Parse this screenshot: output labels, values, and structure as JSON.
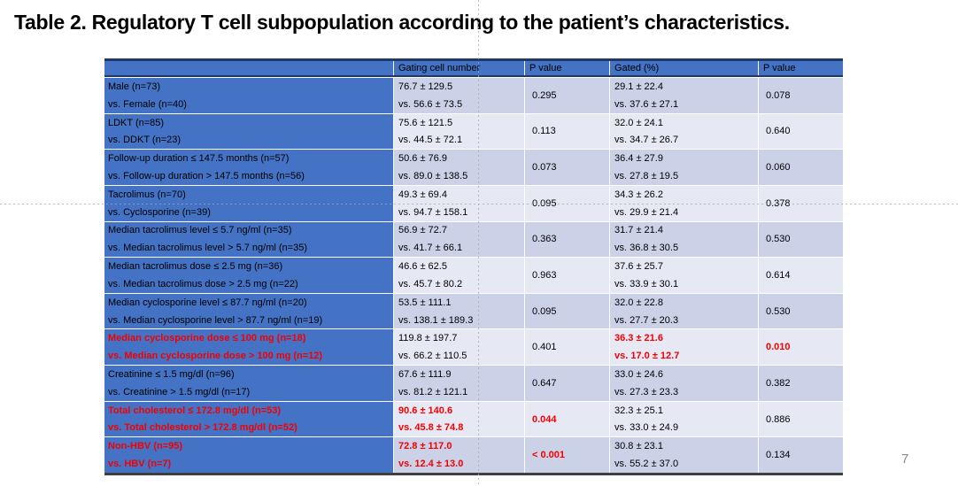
{
  "slide": {
    "title": "Table 2. Regulatory T cell subpopulation according to the patient’s characteristics.",
    "page_number": "7"
  },
  "colors": {
    "header_bg": "#4472C4",
    "label_bg": "#4472C4",
    "band_dark": "#CBD2E8",
    "band_light": "#E6E9F4",
    "highlight_red": "#F40000",
    "border_dark": "#1F3864",
    "border_bottom": "#404040",
    "guide_gray": "#A8A8A8",
    "page_number_gray": "#8A8A8A",
    "text": "#000000"
  },
  "table": {
    "columns": [
      "",
      "Gating cell number",
      "P value",
      "Gated (%)",
      "P value"
    ],
    "rows": [
      {
        "label1": "Male (n=73)",
        "label2": "vs. Female (n=40)",
        "gating1": "76.7 ± 129.5",
        "gating2": "vs. 56.6 ± 73.5",
        "p1": "0.295",
        "gated1": "29.1 ± 22.4",
        "gated2": "vs. 37.6 ± 27.1",
        "p2": "0.078",
        "red": {}
      },
      {
        "label1": "LDKT (n=85)",
        "label2": "vs. DDKT (n=23)",
        "gating1": "75.6 ± 121.5",
        "gating2": "vs. 44.5 ± 72.1",
        "p1": "0.113",
        "gated1": "32.0 ± 24.1",
        "gated2": "vs. 34.7 ± 26.7",
        "p2": "0.640",
        "red": {}
      },
      {
        "label1": "Follow-up duration ≤ 147.5 months (n=57)",
        "label2": "vs. Follow-up duration > 147.5 months (n=56)",
        "gating1": "50.6 ± 76.9",
        "gating2": "vs. 89.0 ± 138.5",
        "p1": "0.073",
        "gated1": "36.4 ± 27.9",
        "gated2": "vs. 27.8 ± 19.5",
        "p2": "0.060",
        "red": {}
      },
      {
        "label1": "Tacrolimus (n=70)",
        "label2": "vs. Cyclosporine (n=39)",
        "gating1": "49.3 ± 69.4",
        "gating2": "vs. 94.7 ± 158.1",
        "p1": "0.095",
        "gated1": "34.3 ± 26.2",
        "gated2": "vs. 29.9 ± 21.4",
        "p2": "0.378",
        "red": {}
      },
      {
        "label1": "Median tacrolimus level ≤ 5.7 ng/ml (n=35)",
        "label2": "vs. Median tacrolimus level > 5.7 ng/ml (n=35)",
        "gating1": "56.9 ± 72.7",
        "gating2": "vs. 41.7 ± 66.1",
        "p1": "0.363",
        "gated1": "31.7 ± 21.4",
        "gated2": "vs. 36.8 ± 30.5",
        "p2": "0.530",
        "red": {}
      },
      {
        "label1": "Median tacrolimus dose ≤ 2.5 mg (n=36)",
        "label2": "vs. Median tacrolimus dose > 2.5 mg (n=22)",
        "gating1": "46.6 ± 62.5",
        "gating2": "vs. 45.7 ± 80.2",
        "p1": "0.963",
        "gated1": "37.6 ± 25.7",
        "gated2": "vs. 33.9 ± 30.1",
        "p2": "0.614",
        "red": {}
      },
      {
        "label1": "Median cyclosporine level ≤ 87.7 ng/ml (n=20)",
        "label2": "vs. Median cyclosporine level > 87.7 ng/ml (n=19)",
        "gating1": "53.5 ± 111.1",
        "gating2": "vs. 138.1 ± 189.3",
        "p1": "0.095",
        "gated1": "32.0 ± 22.8",
        "gated2": "vs. 27.7 ± 20.3",
        "p2": "0.530",
        "red": {}
      },
      {
        "label1": "Median cyclosporine dose ≤ 100 mg (n=18)",
        "label2": "vs. Median cyclosporine dose > 100 mg (n=12)",
        "gating1": "119.8 ± 197.7",
        "gating2": "vs. 66.2 ± 110.5",
        "p1": "0.401",
        "gated1": "36.3 ± 21.6",
        "gated2": "vs. 17.0 ± 12.7",
        "p2": "0.010",
        "red": {
          "label": true,
          "gated": true,
          "p2": true
        }
      },
      {
        "label1": "Creatinine ≤ 1.5 mg/dl (n=96)",
        "label2": "vs. Creatinine > 1.5 mg/dl (n=17)",
        "gating1": "67.6 ± 111.9",
        "gating2": "vs. 81.2 ± 121.1",
        "p1": "0.647",
        "gated1": "33.0 ± 24.6",
        "gated2": "vs. 27.3 ± 23.3",
        "p2": "0.382",
        "red": {}
      },
      {
        "label1": "Total cholesterol ≤ 172.8 mg/dl (n=53)",
        "label2": "vs. Total cholesterol > 172.8 mg/dl (n=52)",
        "gating1": "90.6 ± 140.6",
        "gating2": "vs. 45.8 ± 74.8",
        "p1": "0.044",
        "gated1": "32.3 ± 25.1",
        "gated2": "vs. 33.0 ± 24.9",
        "p2": "0.886",
        "red": {
          "label": true,
          "gating": true,
          "p1": true
        }
      },
      {
        "label1": "Non-HBV (n=95)",
        "label2": "vs. HBV (n=7)",
        "gating1": "72.8 ± 117.0",
        "gating2": "vs. 12.4 ± 13.0",
        "p1": "< 0.001",
        "gated1": "30.8 ± 23.1",
        "gated2": "vs. 55.2 ± 37.0",
        "p2": "0.134",
        "red": {
          "label": true,
          "gating": true,
          "p1": true
        }
      }
    ]
  }
}
